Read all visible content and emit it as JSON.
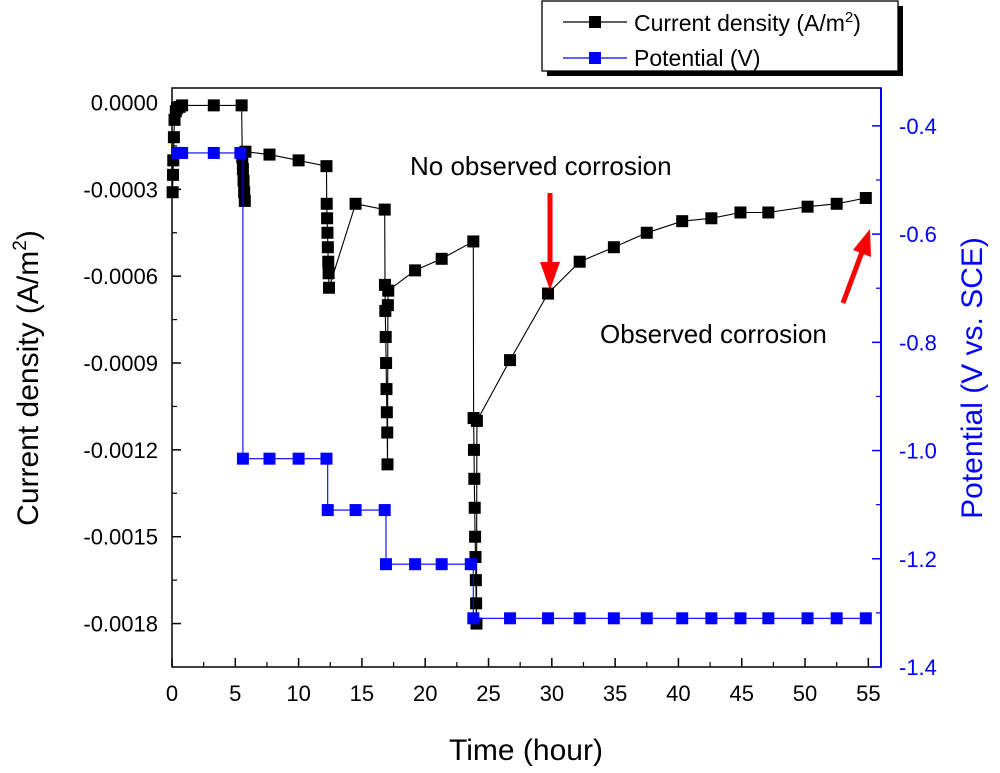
{
  "chart_data": {
    "type": "line",
    "xlabel": "Time (hour)",
    "ylabel_left": "Current density (A/m",
    "ylabel_left_sup": "2",
    "ylabel_left_close": ")",
    "ylabel_right": "Potential (V vs. SCE)",
    "xlim": [
      0,
      56
    ],
    "ylim_left": [
      -0.00195,
      5e-05
    ],
    "ylim_right": [
      -1.4,
      -0.33
    ],
    "x_ticks": [
      0,
      5,
      10,
      15,
      20,
      25,
      30,
      35,
      40,
      45,
      50,
      55
    ],
    "x_tick_labels": [
      "0",
      "5",
      "10",
      "15",
      "20",
      "25",
      "30",
      "35",
      "40",
      "45",
      "50",
      "55"
    ],
    "y_left_ticks": [
      0,
      -0.0003,
      -0.0006,
      -0.0009,
      -0.0012,
      -0.0015,
      -0.0018
    ],
    "y_left_tick_labels": [
      "0.0000",
      "-0.0003",
      "-0.0006",
      "-0.0009",
      "-0.0012",
      "-0.0015",
      "-0.0018"
    ],
    "y_right_ticks": [
      -0.4,
      -0.6,
      -0.8,
      -1.0,
      -1.2,
      -1.4
    ],
    "y_right_tick_labels": [
      "-0.4",
      "-0.6",
      "-0.8",
      "-1.0",
      "-1.2",
      "-1.4"
    ],
    "legend": {
      "position": "top-right, outside plot",
      "entries": [
        {
          "label": "Current density (A/m",
          "sup": "2",
          "close": ")",
          "color": "#000000"
        },
        {
          "label": "Potential (V)",
          "sup": "",
          "close": "",
          "color": "#0000ff"
        }
      ]
    },
    "annotations": [
      {
        "text": "No observed corrosion"
      },
      {
        "text": "Observed corrosion"
      }
    ],
    "arrow_color": "#ff0000",
    "series": [
      {
        "name": "Current density (A/m2)",
        "axis": "left",
        "color": "#000000",
        "x": [
          0.05,
          0.08,
          0.1,
          0.15,
          0.2,
          0.3,
          0.4,
          0.6,
          0.8,
          3.3,
          5.5,
          5.55,
          5.6,
          5.65,
          5.7,
          5.75,
          5.8,
          7.7,
          10.0,
          12.2,
          12.22,
          12.25,
          12.28,
          12.31,
          12.34,
          12.37,
          12.4,
          14.5,
          16.8,
          16.82,
          16.85,
          16.88,
          16.91,
          16.94,
          16.97,
          17.0,
          17.02,
          17.05,
          17.08,
          19.2,
          21.3,
          23.8,
          23.82,
          23.85,
          23.88,
          23.91,
          23.94,
          23.97,
          24.0,
          24.02,
          24.05,
          24.08,
          26.7,
          29.7,
          32.2,
          34.9,
          37.5,
          40.3,
          42.6,
          44.9,
          47.1,
          50.2,
          52.5,
          54.8
        ],
        "y": [
          -0.00031,
          -0.00025,
          -0.0002,
          -0.00012,
          -6e-05,
          -3e-05,
          -2e-05,
          -1.5e-05,
          -1e-05,
          -1e-05,
          -1e-05,
          -0.00019,
          -0.00023,
          -0.00027,
          -0.00031,
          -0.00034,
          -0.00017,
          -0.00018,
          -0.0002,
          -0.00022,
          -0.00035,
          -0.0004,
          -0.00045,
          -0.0005,
          -0.00055,
          -0.00059,
          -0.00064,
          -0.00035,
          -0.00037,
          -0.00063,
          -0.00072,
          -0.00081,
          -0.0009,
          -0.00099,
          -0.00107,
          -0.00114,
          -0.00125,
          -0.0007,
          -0.00065,
          -0.00058,
          -0.00054,
          -0.00048,
          -0.00109,
          -0.0012,
          -0.0013,
          -0.0014,
          -0.0015,
          -0.00157,
          -0.00165,
          -0.00173,
          -0.0018,
          -0.0011,
          -0.00089,
          -0.00066,
          -0.00055,
          -0.0005,
          -0.00045,
          -0.00041,
          -0.0004,
          -0.00038,
          -0.00038,
          -0.00036,
          -0.00035,
          -0.00033
        ]
      },
      {
        "name": "Potential (V)",
        "axis": "right",
        "color": "#0000ff",
        "x": [
          0.4,
          0.8,
          3.3,
          5.4,
          5.6,
          7.7,
          10.0,
          12.2,
          12.3,
          14.5,
          16.8,
          16.9,
          19.2,
          21.3,
          23.6,
          23.8,
          26.7,
          29.7,
          32.2,
          34.9,
          37.5,
          40.3,
          42.6,
          44.9,
          47.1,
          50.2,
          52.5,
          54.8
        ],
        "y": [
          -0.45,
          -0.45,
          -0.45,
          -0.45,
          -1.015,
          -1.015,
          -1.015,
          -1.015,
          -1.11,
          -1.11,
          -1.11,
          -1.21,
          -1.21,
          -1.21,
          -1.21,
          -1.31,
          -1.31,
          -1.31,
          -1.31,
          -1.31,
          -1.31,
          -1.31,
          -1.31,
          -1.31,
          -1.31,
          -1.31,
          -1.31,
          -1.31
        ]
      }
    ]
  }
}
